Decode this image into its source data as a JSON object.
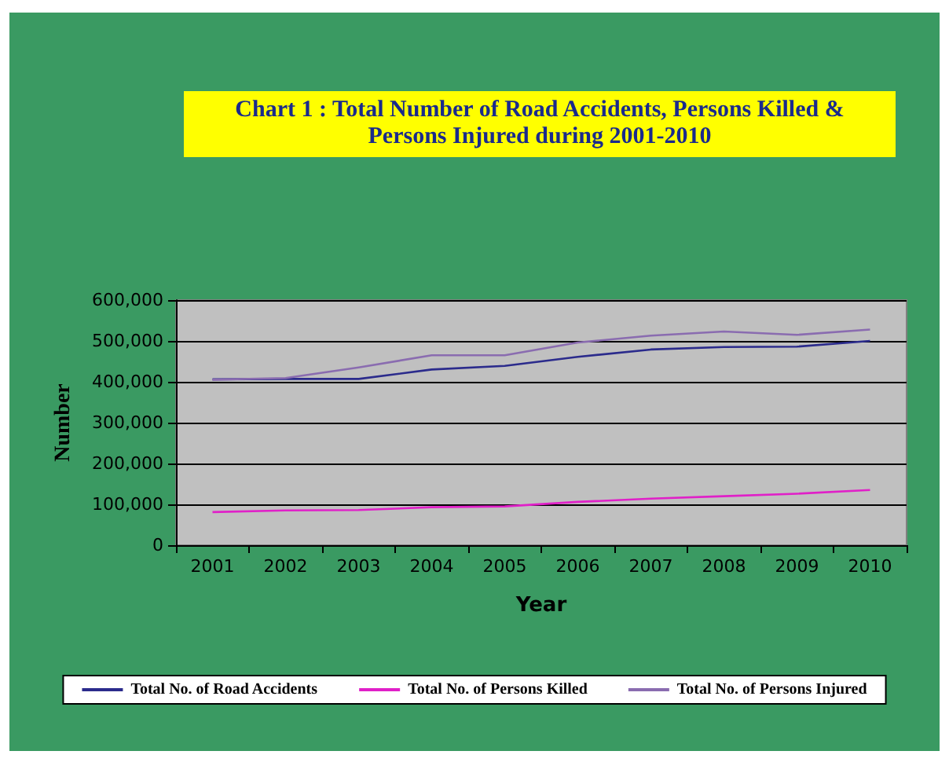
{
  "chart_data": {
    "type": "line",
    "title": "Chart 1 : Total Number of Road Accidents, Persons Killed & Persons Injured during 2001-2010",
    "xlabel": "Year",
    "ylabel": "Number",
    "categories": [
      "2001",
      "2002",
      "2003",
      "2004",
      "2005",
      "2006",
      "2007",
      "2008",
      "2009",
      "2010"
    ],
    "series": [
      {
        "name": "Total No. of Road Accidents",
        "color": "#2b2b8c",
        "values": [
          406000,
          407000,
          407000,
          430000,
          439000,
          461000,
          479000,
          485000,
          486000,
          500000
        ]
      },
      {
        "name": "Total No. of Persons Killed",
        "color": "#e020c8",
        "values": [
          81000,
          85000,
          86000,
          93000,
          95000,
          106000,
          114000,
          120000,
          126000,
          135000
        ]
      },
      {
        "name": "Total No. of Persons Injured",
        "color": "#8a6cb0",
        "values": [
          405000,
          409000,
          435000,
          465000,
          465000,
          496000,
          513000,
          523000,
          515000,
          528000
        ]
      }
    ],
    "ylim": [
      0,
      600000
    ],
    "yticks": [
      0,
      {
        "value": 100000,
        "label": "100,000"
      },
      {
        "value": 200000,
        "label": "200,000"
      },
      {
        "value": 300000,
        "label": "300,000"
      },
      {
        "value": 400000,
        "label": "400,000"
      },
      {
        "value": 500000,
        "label": "500,000"
      },
      {
        "value": 600000,
        "label": "600,000"
      }
    ],
    "grid": "y",
    "legend": "bottom",
    "marker": "none",
    "line_style": "solid"
  }
}
